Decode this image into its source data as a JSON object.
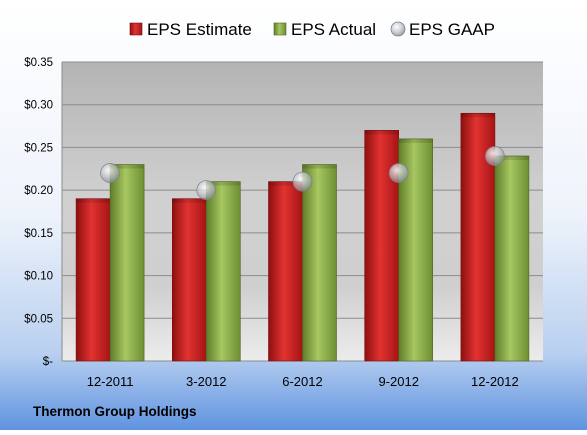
{
  "chart_data": {
    "type": "bar",
    "title": "",
    "company": "Thermon Group Holdings",
    "categories": [
      "12-2011",
      "3-2012",
      "6-2012",
      "9-2012",
      "12-2012"
    ],
    "series": [
      {
        "name": "EPS Estimate",
        "kind": "bar",
        "color": "#cc1f1f",
        "values": [
          0.19,
          0.19,
          0.21,
          0.27,
          0.29
        ]
      },
      {
        "name": "EPS Actual",
        "kind": "bar",
        "color": "#8db04a",
        "values": [
          0.23,
          0.21,
          0.23,
          0.26,
          0.24
        ]
      },
      {
        "name": "EPS GAAP",
        "kind": "marker",
        "color": "#b8bcc4",
        "values": [
          0.22,
          0.2,
          0.21,
          0.22,
          0.24
        ]
      }
    ],
    "ylim": [
      0,
      0.35
    ],
    "yticks": [
      0,
      0.05,
      0.1,
      0.15,
      0.2,
      0.25,
      0.3,
      0.35
    ],
    "ytick_labels": [
      "$-",
      "$0.05",
      "$0.10",
      "$0.15",
      "$0.20",
      "$0.25",
      "$0.30",
      "$0.35"
    ],
    "grid": true,
    "legend": "top"
  }
}
